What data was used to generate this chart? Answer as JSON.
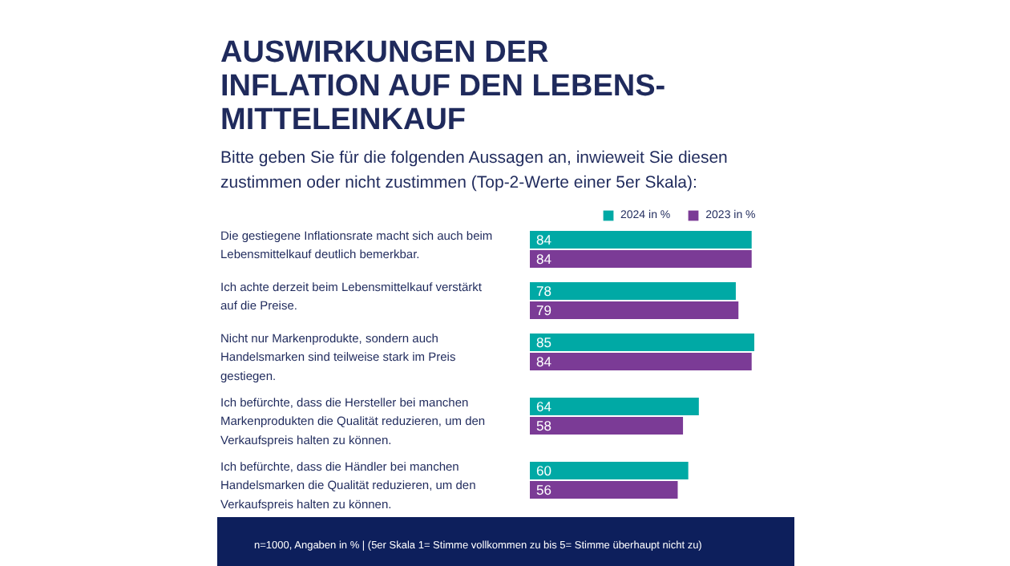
{
  "chart_data": {
    "type": "bar",
    "orientation": "horizontal",
    "title": "AUSWIRKUNGEN DER INFLATION AUF DEN LEBENS-MITTELEINKAUF",
    "subtitle": "Bitte geben Sie für die folgenden Aussagen an, inwieweit Sie diesen zustimmen oder nicht zustimmen (Top-2-Werte einer 5er Skala):",
    "categories": [
      "Die gestiegene Inflationsrate macht sich auch beim Lebensmittelkauf deutlich bemerkbar.",
      "Ich achte derzeit beim Lebensmittelkauf verstärkt auf die Preise.",
      "Nicht nur Markenprodukte, sondern auch Handelsmarken sind teilweise stark im Preis gestiegen.",
      "Ich befürchte, dass die Hersteller bei manchen Markenprodukten die Qualität reduzieren, um den Verkaufspreis halten zu können.",
      "Ich befürchte, dass die Händler bei manchen Handelsmarken die Qualität reduzieren, um den Verkaufspreis halten zu können."
    ],
    "series": [
      {
        "name": "2024 in %",
        "color": "#00a9a5",
        "values": [
          84,
          78,
          85,
          64,
          60
        ]
      },
      {
        "name": "2023 in %",
        "color": "#7b3b96",
        "values": [
          84,
          79,
          84,
          58,
          56
        ]
      }
    ],
    "data_labels": true,
    "legend": "top right",
    "grid": false,
    "annotations": [
      "n=1000, Angaben in %  | (5er Skala 1= Stimme vollkommen zu bis 5= Stimme überhaupt nicht zu)"
    ]
  }
}
